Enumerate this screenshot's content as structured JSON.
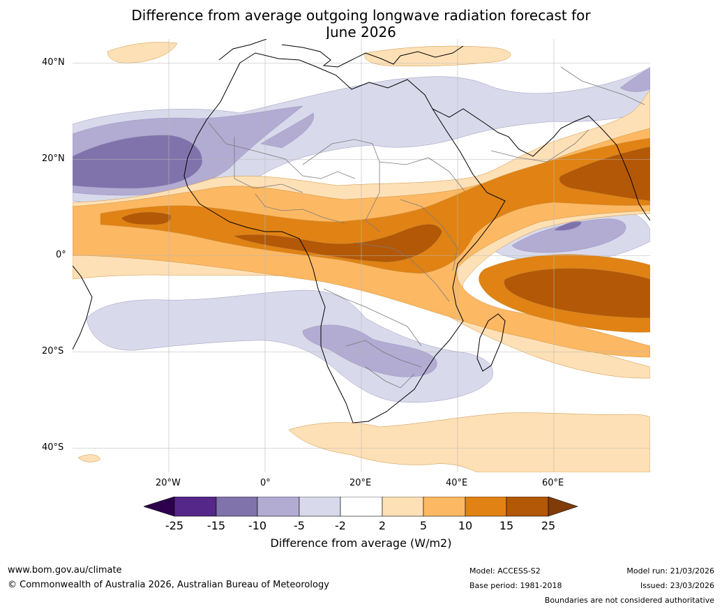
{
  "title_line1": "Difference from average outgoing longwave radiation forecast for",
  "title_line2": "June 2026",
  "lat_labels": [
    "40°N",
    "20°N",
    "0°",
    "20°S",
    "40°S"
  ],
  "lon_labels": [
    "20°W",
    "0°",
    "20°E",
    "40°E",
    "60°E"
  ],
  "colorbar": {
    "ticks": [
      "-25",
      "-15",
      "-10",
      "-5",
      "-2",
      "2",
      "5",
      "10",
      "15",
      "25"
    ],
    "colors": [
      "#2d004b",
      "#542788",
      "#8073ac",
      "#b2abd2",
      "#d8daeb",
      "#ffffff",
      "#fee0b6",
      "#fdb863",
      "#e08214",
      "#b35806",
      "#7f3b08"
    ],
    "label": "Difference from average (W/m2)"
  },
  "footer": {
    "url": "www.bom.gov.au/climate",
    "copyright": "© Commonwealth of Australia 2026, Australian Bureau of Meteorology",
    "model": "Model: ACCESS-S2",
    "base_period": "Base period: 1981-2018",
    "model_run": "Model run: 21/03/2026",
    "issued": "Issued: 23/03/2026",
    "disclaimer": "Boundaries are not considered authoritative"
  }
}
